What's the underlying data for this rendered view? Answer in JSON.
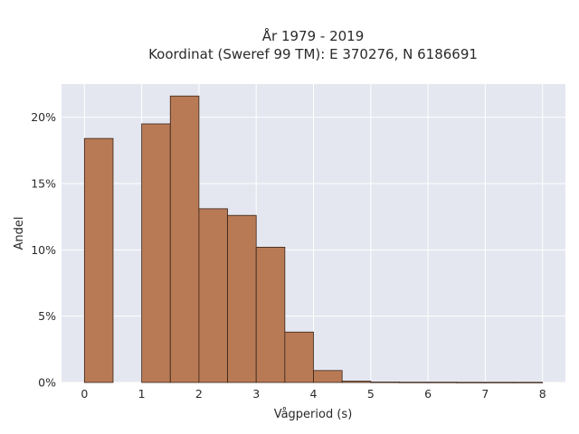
{
  "chart_data": {
    "type": "bar",
    "title_line1": "År 1979 - 2019",
    "title_line2": "Koordinat (Sweref 99 TM): E 370276, N 6186691",
    "xlabel": "Vågperiod (s)",
    "ylabel": "Andel",
    "xlim": [
      -0.4,
      8.4
    ],
    "ylim": [
      0,
      22.5
    ],
    "x_ticks": [
      0,
      1,
      2,
      3,
      4,
      5,
      6,
      7,
      8
    ],
    "x_tick_labels": [
      "0",
      "1",
      "2",
      "3",
      "4",
      "5",
      "6",
      "7",
      "8"
    ],
    "y_ticks": [
      0,
      5,
      10,
      15,
      20
    ],
    "y_tick_labels": [
      "0%",
      "5%",
      "10%",
      "15%",
      "20%"
    ],
    "bin_width": 0.5,
    "bins": [
      {
        "start": 0.0,
        "value": 18.4
      },
      {
        "start": 0.5,
        "value": 0.0
      },
      {
        "start": 1.0,
        "value": 19.5
      },
      {
        "start": 1.5,
        "value": 21.6
      },
      {
        "start": 2.0,
        "value": 13.1
      },
      {
        "start": 2.5,
        "value": 12.6
      },
      {
        "start": 3.0,
        "value": 10.2
      },
      {
        "start": 3.5,
        "value": 3.8
      },
      {
        "start": 4.0,
        "value": 0.9
      },
      {
        "start": 4.5,
        "value": 0.1
      },
      {
        "start": 5.0,
        "value": 0.03
      },
      {
        "start": 5.5,
        "value": 0.02
      },
      {
        "start": 6.0,
        "value": 0.02
      },
      {
        "start": 6.5,
        "value": 0.01
      },
      {
        "start": 7.0,
        "value": 0.01
      },
      {
        "start": 7.5,
        "value": 0.01
      }
    ],
    "grid": true,
    "colors": {
      "bar_fill": "#b87a55",
      "bar_edge": "#3a2418",
      "plot_background": "#e5e7f0",
      "grid": "#ffffff"
    }
  }
}
